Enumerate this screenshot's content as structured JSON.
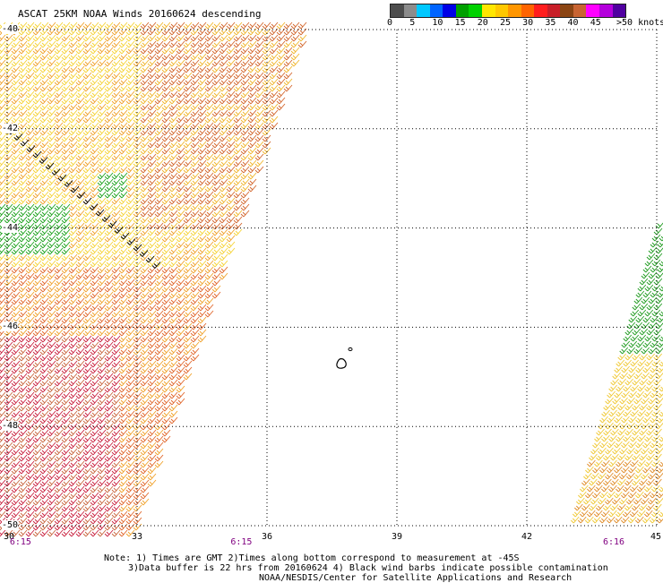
{
  "title": "ASCAT 25KM NOAA Winds 20160624 descending",
  "legend": {
    "colors": [
      "#4d4d4d",
      "#8c8c8c",
      "#00c8ff",
      "#0064ff",
      "#0000e6",
      "#00a000",
      "#00d200",
      "#ffe600",
      "#ffc800",
      "#ff9600",
      "#ff6400",
      "#ff1e1e",
      "#c81e28",
      "#8b4513",
      "#c86432",
      "#ff00ff",
      "#b400dc",
      "#5000a0"
    ],
    "labels": [
      {
        "text": "0",
        "knots": 0
      },
      {
        "text": "5",
        "knots": 5
      },
      {
        "text": "10",
        "knots": 10
      },
      {
        "text": "15",
        "knots": 15
      },
      {
        "text": "20",
        "knots": 20
      },
      {
        "text": "25",
        "knots": 25
      },
      {
        "text": "30",
        "knots": 30
      },
      {
        "text": "35",
        "knots": 35
      },
      {
        "text": "40",
        "knots": 40
      },
      {
        "text": "45",
        "knots": 45
      },
      {
        "text": ">50 knots",
        "knots": 50
      }
    ]
  },
  "x_axis": {
    "min": 30,
    "max": 45,
    "ticks": [
      {
        "value": 30,
        "label": "30"
      },
      {
        "value": 33,
        "label": "33"
      },
      {
        "value": 36,
        "label": "36"
      },
      {
        "value": 39,
        "label": "39"
      },
      {
        "value": 42,
        "label": "42"
      },
      {
        "value": 45,
        "label": "45"
      }
    ]
  },
  "y_axis": {
    "min": -50,
    "max": -40,
    "ticks": [
      {
        "value": -40,
        "label": "-40"
      },
      {
        "value": -42,
        "label": "-42"
      },
      {
        "value": -44,
        "label": "-44"
      },
      {
        "value": -46,
        "label": "-46"
      },
      {
        "value": -48,
        "label": "-48"
      },
      {
        "value": -50,
        "label": "-50"
      }
    ]
  },
  "times": [
    {
      "text": "6:15",
      "lon": 30.1
    },
    {
      "text": "6:15",
      "lon": 35.2
    },
    {
      "text": "6:16",
      "lon": 43.8
    }
  ],
  "notes": [
    "Note: 1) Times are GMT 2)Times along bottom correspond to measurement at -45S",
    "3)Data buffer is 22 hrs from 20160624 4) Black wind barbs indicate possible contamination",
    "NOAA/NESDIS/Center for Satellite Applications and Research"
  ],
  "colors": {
    "time_label": "#800080",
    "grid": "#000000",
    "contaminated_barb": "#000000"
  }
}
